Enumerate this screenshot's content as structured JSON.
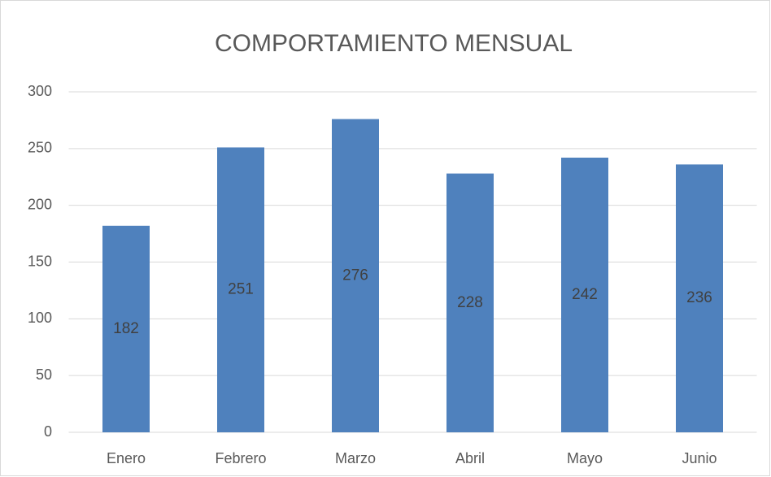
{
  "chart_data": {
    "type": "bar",
    "title": "COMPORTAMIENTO MENSUAL",
    "categories": [
      "Enero",
      "Febrero",
      "Marzo",
      "Abril",
      "Mayo",
      "Junio"
    ],
    "values": [
      182,
      251,
      276,
      228,
      242,
      236
    ],
    "color": "#4f81bd",
    "ylim": [
      0,
      300
    ],
    "yticks": [
      0,
      50,
      100,
      150,
      200,
      250,
      300
    ],
    "grid": true
  }
}
